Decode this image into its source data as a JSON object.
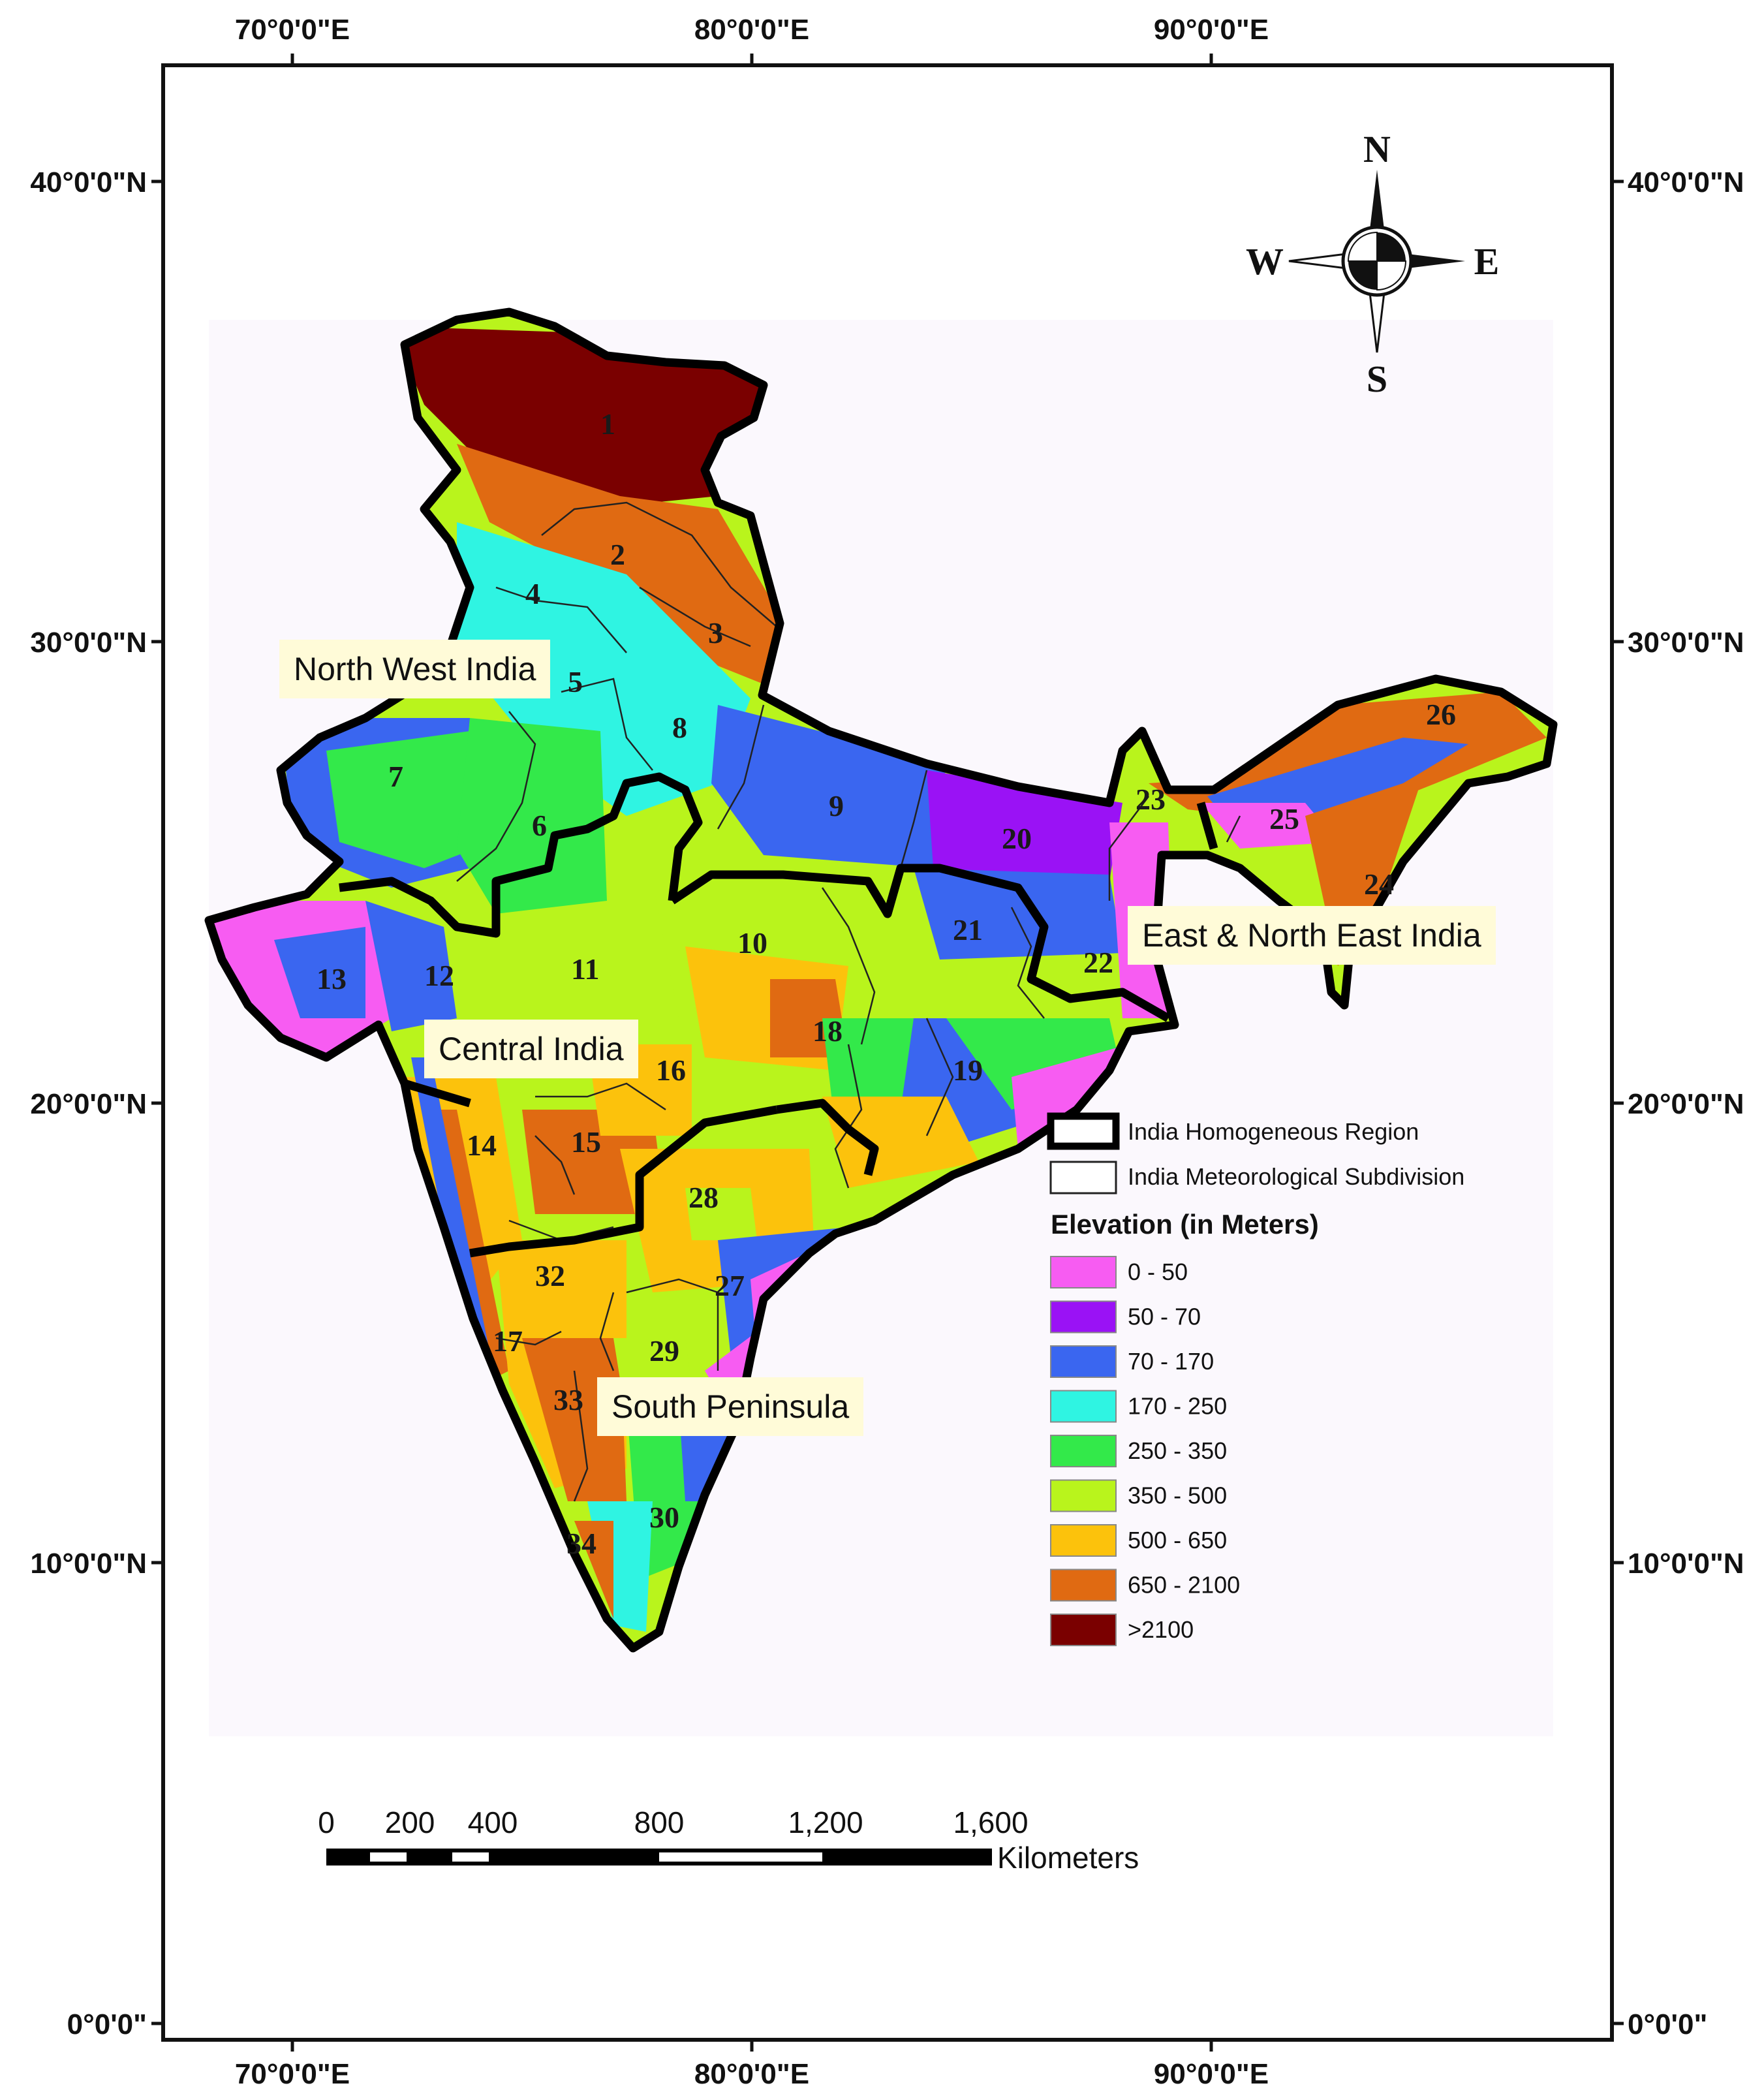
{
  "axes": {
    "lon_labels": [
      "70°0'0\"E",
      "80°0'0\"E",
      "90°0'0\"E"
    ],
    "lat_labels": [
      "40°0'0\"N",
      "30°0'0\"N",
      "20°0'0\"N",
      "10°0'0\"N",
      "0°0'0\""
    ]
  },
  "regions": {
    "north_west": "North West India",
    "central": "Central India",
    "east_north_east": "East & North East India",
    "south_peninsula": "South Peninsula"
  },
  "subdivisions": [
    "1",
    "2",
    "3",
    "4",
    "5",
    "6",
    "7",
    "8",
    "9",
    "10",
    "11",
    "12",
    "13",
    "14",
    "15",
    "16",
    "17",
    "18",
    "19",
    "20",
    "21",
    "22",
    "23",
    "24",
    "25",
    "26",
    "27",
    "28",
    "29",
    "30",
    "32",
    "33",
    "34"
  ],
  "compass": {
    "n": "N",
    "s": "S",
    "e": "E",
    "w": "W"
  },
  "legend": {
    "boundary_items": [
      "India Homogeneous Region",
      "India Meteorological Subdivision"
    ],
    "elevation_title": "Elevation (in Meters)",
    "classes": [
      {
        "label": "0 - 50",
        "color": "#f75cf2"
      },
      {
        "label": "50 - 70",
        "color": "#9a12f5"
      },
      {
        "label": "70 - 170",
        "color": "#3a66f0"
      },
      {
        "label": "170 - 250",
        "color": "#2ff4e2"
      },
      {
        "label": "250 - 350",
        "color": "#33e94a"
      },
      {
        "label": "350 - 500",
        "color": "#b9f41c"
      },
      {
        "label": "500 - 650",
        "color": "#fcc20c"
      },
      {
        "label": "650 - 2100",
        "color": "#e06a12"
      },
      {
        "label": ">2100",
        "color": "#7a0000"
      }
    ]
  },
  "scale_bar": {
    "ticks": [
      "0",
      "200",
      "400",
      "800",
      "1,200",
      "1,600"
    ],
    "unit": "Kilometers"
  }
}
